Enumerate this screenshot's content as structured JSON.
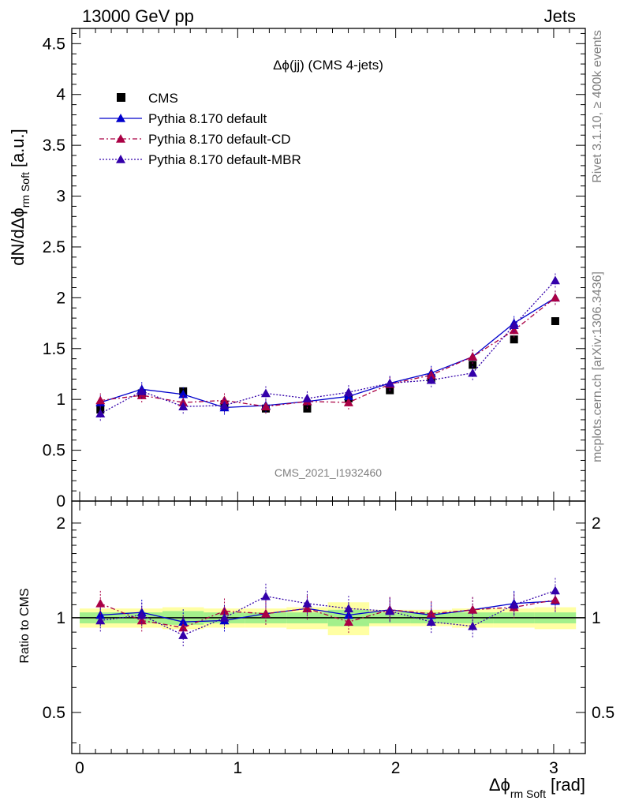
{
  "header": {
    "left": "13000 GeV pp",
    "right": "Jets"
  },
  "side": {
    "rivet": "Rivet 3.1.10, ≥ 400k events",
    "mcplots": "mcplots.cern.ch [arXiv:1306.3436]"
  },
  "plot_title": "Δϕ(jj) (CMS 4-jets)",
  "watermark": "CMS_2021_I1932460",
  "ylabel_main": "dN/dΔϕ",
  "ylabel_main_sub": "rm Soft",
  "ylabel_main_unit": "[a.u.]",
  "ylabel_ratio": "Ratio to CMS",
  "xlabel": "Δϕ",
  "xlabel_sub": "rm Soft",
  "xlabel_unit": "[rad]",
  "legend": [
    {
      "label": "CMS",
      "color": "#000000",
      "marker": "square",
      "dash": ""
    },
    {
      "label": "Pythia 8.170 default",
      "color": "#0000cc",
      "marker": "triangle",
      "dash": ""
    },
    {
      "label": "Pythia 8.170 default-CD",
      "color": "#aa0044",
      "marker": "triangle",
      "dash": "6,3,2,3"
    },
    {
      "label": "Pythia 8.170 default-MBR",
      "color": "#3300aa",
      "marker": "triangle",
      "dash": "2,2"
    }
  ],
  "chart_data": {
    "type": "scatter",
    "x": [
      0.131,
      0.393,
      0.655,
      0.916,
      1.178,
      1.44,
      1.702,
      1.963,
      2.225,
      2.487,
      2.749,
      3.01
    ],
    "xlim": [
      -0.05,
      3.2
    ],
    "xticks": [
      0,
      1,
      2,
      3
    ],
    "main": {
      "ylim": [
        0,
        4.65
      ],
      "yticks": [
        0,
        0.5,
        1,
        1.5,
        2,
        2.5,
        3,
        3.5,
        4,
        4.5
      ],
      "yticklabels": [
        "0",
        "0.5",
        "1",
        "1.5",
        "2",
        "2.5",
        "3",
        "3.5",
        "4",
        "4.5"
      ],
      "series": [
        {
          "name": "CMS",
          "values": [
            0.9,
            1.06,
            1.08,
            0.95,
            0.91,
            0.91,
            1.01,
            1.09,
            1.21,
            1.34,
            1.59,
            1.77
          ]
        },
        {
          "name": "Pythia 8.170 default",
          "values": [
            0.97,
            1.1,
            1.05,
            0.92,
            0.94,
            0.98,
            1.03,
            1.16,
            1.26,
            1.42,
            1.75,
            2.0
          ]
        },
        {
          "name": "Pythia 8.170 default-CD",
          "values": [
            0.99,
            1.04,
            0.97,
            0.99,
            0.93,
            0.98,
            0.97,
            1.15,
            1.24,
            1.42,
            1.68,
            2.0
          ]
        },
        {
          "name": "Pythia 8.170 default-MBR",
          "values": [
            0.86,
            1.08,
            0.93,
            0.94,
            1.06,
            1.01,
            1.07,
            1.16,
            1.19,
            1.26,
            1.73,
            2.17
          ]
        }
      ]
    },
    "ratio": {
      "ylim": [
        0.37,
        2.35
      ],
      "yticks": [
        0.5,
        1,
        2
      ],
      "yticklabels": [
        "0.5",
        "1",
        "2"
      ],
      "series": [
        {
          "name": "Pythia 8.170 default",
          "values": [
            1.02,
            1.04,
            0.97,
            0.98,
            1.03,
            1.07,
            1.02,
            1.06,
            1.02,
            1.06,
            1.11,
            1.13
          ]
        },
        {
          "name": "Pythia 8.170 default-CD",
          "values": [
            1.11,
            0.98,
            0.93,
            1.05,
            1.03,
            1.07,
            0.97,
            1.06,
            1.03,
            1.06,
            1.08,
            1.14
          ]
        },
        {
          "name": "Pythia 8.170 default-MBR",
          "values": [
            0.98,
            1.02,
            0.88,
            1.0,
            1.17,
            1.11,
            1.07,
            1.05,
            0.97,
            0.94,
            1.1,
            1.22
          ]
        }
      ],
      "band_stat": [
        0.04,
        0.04,
        0.05,
        0.04,
        0.04,
        0.04,
        0.06,
        0.04,
        0.04,
        0.04,
        0.04,
        0.04
      ],
      "band_total": [
        0.07,
        0.07,
        0.08,
        0.07,
        0.07,
        0.08,
        0.12,
        0.06,
        0.06,
        0.07,
        0.07,
        0.08
      ]
    }
  }
}
